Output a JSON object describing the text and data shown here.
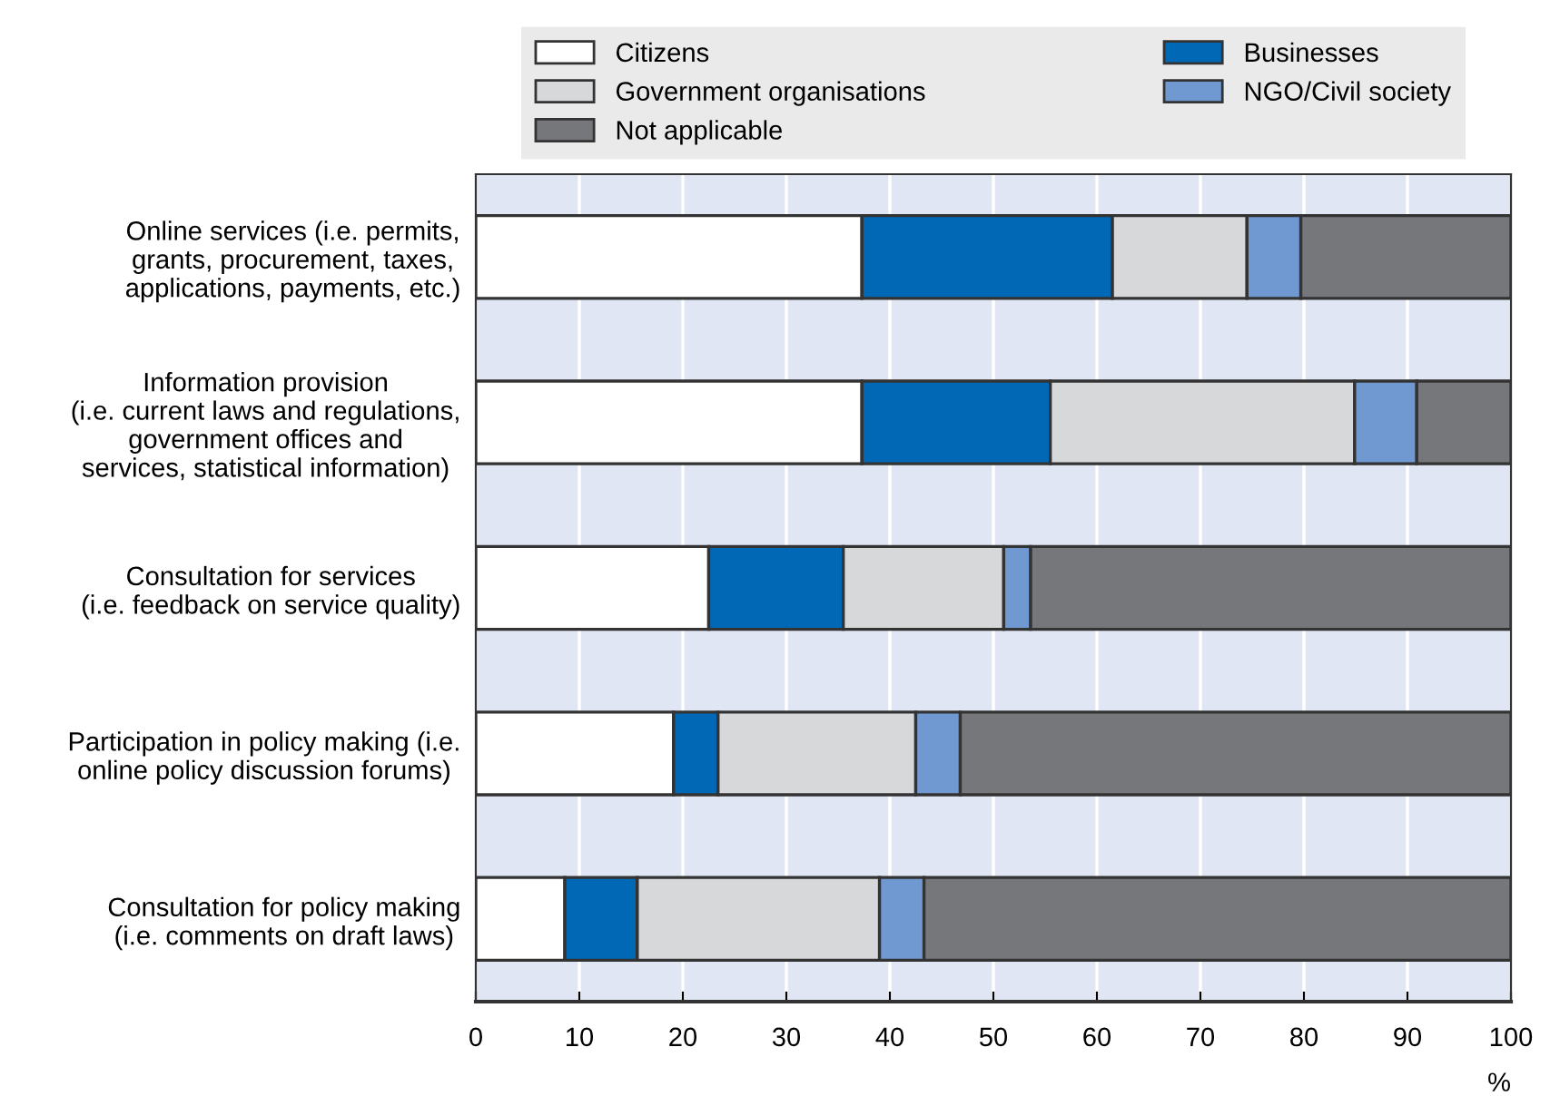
{
  "chart_data": {
    "type": "bar",
    "orientation": "horizontal",
    "stacked": true,
    "categories": [
      "Online services (i.e. permits,\ngrants, procurement, taxes,\napplications, payments, etc.)",
      "Information provision\n(i.e. current laws and regulations,\ngovernment offices and\nservices, statistical information)",
      "Consultation for services\n(i.e. feedback on service quality)",
      "Participation in policy making (i.e.\nonline policy discussion forums)",
      "Consultation for policy making\n(i.e. comments on draft laws)"
    ],
    "series": [
      {
        "name": "Citizens",
        "color": "#ffffff",
        "values": [
          37.3,
          37.3,
          22.5,
          19.1,
          8.6
        ]
      },
      {
        "name": "Businesses",
        "color": "#0068b4",
        "values": [
          24.2,
          18.2,
          13.0,
          4.3,
          7.0
        ]
      },
      {
        "name": "Government organisations",
        "color": "#d7d8da",
        "values": [
          13.0,
          29.4,
          15.5,
          19.1,
          23.4
        ]
      },
      {
        "name": "NGO/Civil society",
        "color": "#7099d2",
        "values": [
          5.2,
          6.0,
          2.6,
          4.3,
          4.3
        ]
      },
      {
        "name": "Not applicable",
        "color": "#76777b",
        "values": [
          20.3,
          9.1,
          46.4,
          53.2,
          56.7
        ]
      }
    ],
    "xlim": [
      0,
      100
    ],
    "xticks": [
      0,
      10,
      20,
      30,
      40,
      50,
      60,
      70,
      80,
      90,
      100
    ],
    "xlabel": "%",
    "grid": "x",
    "legend": "top"
  }
}
